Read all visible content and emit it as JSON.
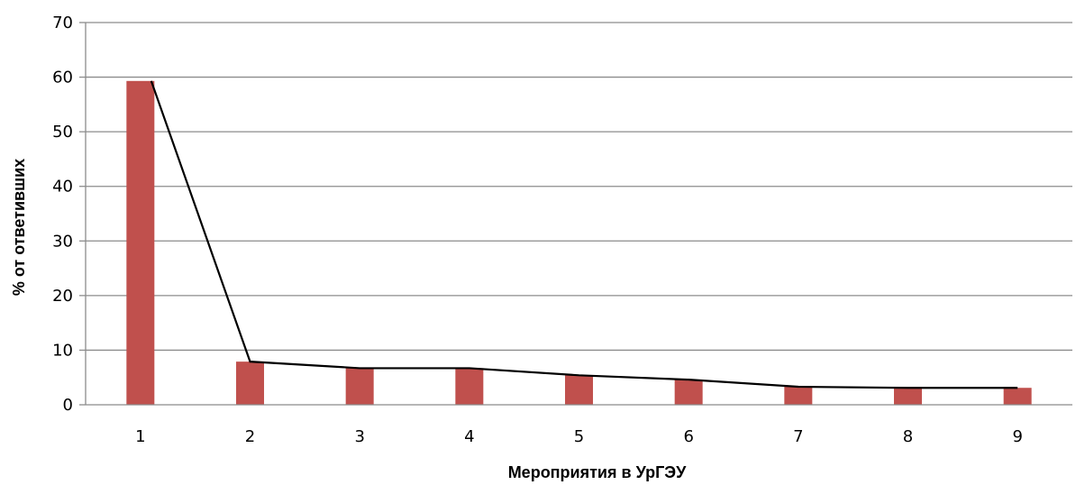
{
  "chart_data": {
    "type": "bar",
    "title": "",
    "xlabel": "Мероприятия в УрГЭУ",
    "ylabel": "% от ответивших",
    "categories": [
      "1",
      "2",
      "3",
      "4",
      "5",
      "6",
      "7",
      "8",
      "9"
    ],
    "series": [
      {
        "type": "bar",
        "values": [
          59.3,
          7.9,
          6.7,
          6.7,
          5.4,
          4.6,
          3.3,
          3.1,
          3.1
        ],
        "color": "#c0504d"
      },
      {
        "type": "line",
        "values": [
          59.3,
          7.9,
          6.7,
          6.7,
          5.4,
          4.6,
          3.3,
          3.1,
          3.1
        ],
        "color": "#000000"
      }
    ],
    "ylim": [
      0,
      70
    ],
    "yticks": [
      0,
      10,
      20,
      30,
      40,
      50,
      60,
      70
    ],
    "grid": true,
    "legend": "none"
  }
}
